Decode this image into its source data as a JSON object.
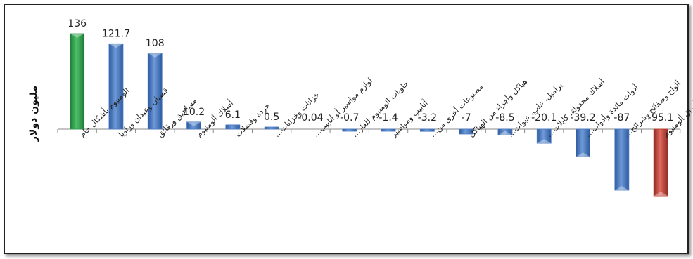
{
  "chart_data": {
    "type": "bar",
    "ylabel": "مليون دولار",
    "categories": [
      "الومنيوم بأشكال خام",
      "قضبان وعيدان وزاويا",
      "مساحيق ورقائق",
      "أسلاك ألومنيوم",
      "خردة وفضلات",
      "خزانات وخزانات…",
      "لوازم مواسير أو أنابيب…",
      "حاويات الومنيوم للغاز…",
      "أنابيب ومواسير",
      "مصنوعات أخرى من…",
      "هياكل وأجزاء من الهياكل",
      "براميل، علب، عبوات…",
      "أسلاك مجدولة، كابلات…",
      "أدوات مائدة وأدوات…",
      "ألواح وصفائح وشرائح…",
      "رقائق أوراق ألومنيوم"
    ],
    "values": [
      136,
      121.7,
      108,
      10.2,
      6.1,
      0.5,
      -0.04,
      -0.7,
      -1.4,
      -3.2,
      -7,
      -8.5,
      -20.1,
      -39.2,
      -87,
      -95.1
    ],
    "value_labels": [
      "136",
      "121.7",
      "108",
      "10.2",
      "6.1",
      "0.5",
      "-0.04",
      "-0.7",
      "-1.4",
      "-3.2",
      "-7",
      "-8.5",
      "-20.1",
      "-39.2",
      "-87",
      "-95.1"
    ],
    "colors": {
      "max_bar": "#2e9e4e",
      "min_bar": "#c0392b",
      "default_bar": "#4a7bc4",
      "max_label": "#2eaa55",
      "min_label": "#c0392b",
      "default_label": "#222222"
    }
  }
}
